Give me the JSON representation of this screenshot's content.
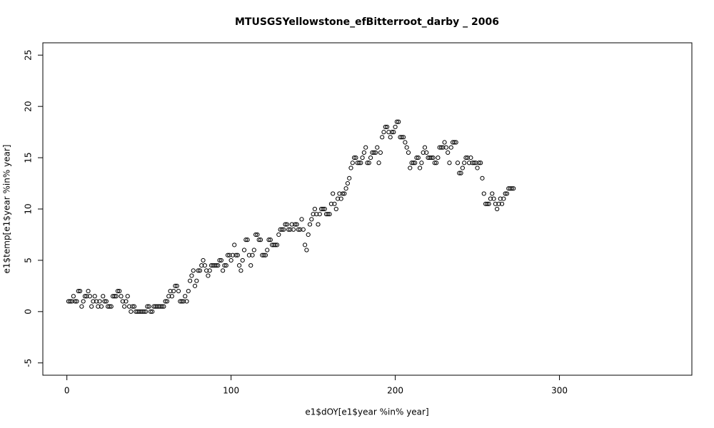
{
  "chart_data": {
    "type": "scatter",
    "title": "MTUSGSYellowstone_efBitterroot_darby _ 2006",
    "x_label": "e1$dOY[e1$year %in% year]",
    "y_label": "e1$temp[e1$year %in% year]",
    "color": "#000000",
    "xlim": [
      -14.64,
      380.64
    ],
    "ylim": [
      -6.2,
      26.2
    ],
    "xticks": [
      0,
      100,
      200,
      300
    ],
    "yticks": [
      -5,
      0,
      5,
      10,
      15,
      20,
      25
    ],
    "x": [
      1,
      2,
      3,
      4,
      5,
      6,
      7,
      8,
      9,
      10,
      11,
      12,
      13,
      14,
      15,
      16,
      17,
      18,
      19,
      20,
      21,
      22,
      23,
      24,
      25,
      26,
      27,
      28,
      29,
      30,
      31,
      32,
      33,
      34,
      35,
      36,
      37,
      38,
      39,
      40,
      41,
      42,
      43,
      44,
      45,
      46,
      47,
      48,
      49,
      50,
      51,
      52,
      53,
      54,
      55,
      56,
      57,
      58,
      59,
      60,
      61,
      62,
      63,
      64,
      65,
      66,
      67,
      68,
      69,
      70,
      71,
      72,
      73,
      74,
      75,
      76,
      77,
      78,
      79,
      80,
      81,
      82,
      83,
      84,
      85,
      86,
      87,
      88,
      89,
      90,
      91,
      92,
      93,
      94,
      95,
      96,
      97,
      98,
      99,
      100,
      101,
      102,
      103,
      104,
      105,
      106,
      107,
      108,
      109,
      110,
      111,
      112,
      113,
      114,
      115,
      116,
      117,
      118,
      119,
      120,
      121,
      122,
      123,
      124,
      125,
      126,
      127,
      128,
      129,
      130,
      131,
      132,
      133,
      134,
      135,
      136,
      137,
      138,
      139,
      140,
      141,
      142,
      143,
      144,
      145,
      146,
      147,
      148,
      149,
      150,
      151,
      152,
      153,
      154,
      155,
      156,
      157,
      158,
      159,
      160,
      161,
      162,
      163,
      164,
      165,
      166,
      167,
      168,
      169,
      170,
      171,
      172,
      173,
      174,
      175,
      176,
      177,
      178,
      179,
      180,
      181,
      182,
      183,
      184,
      185,
      186,
      187,
      188,
      189,
      190,
      191,
      192,
      193,
      194,
      195,
      196,
      197,
      198,
      199,
      200,
      201,
      202,
      203,
      204,
      205,
      206,
      207,
      208,
      209,
      210,
      211,
      212,
      213,
      214,
      215,
      216,
      217,
      218,
      219,
      220,
      221,
      222,
      223,
      224,
      225,
      226,
      227,
      228,
      229,
      230,
      231,
      232,
      233,
      234,
      235,
      236,
      237,
      238,
      239,
      240,
      241,
      242,
      243,
      244,
      245,
      246,
      247,
      248,
      249,
      250,
      251,
      252,
      253,
      254,
      255,
      256,
      257,
      258,
      259,
      260,
      261,
      262,
      263,
      264,
      265,
      266,
      267,
      268,
      269,
      270,
      271,
      272
    ],
    "values": [
      1,
      1,
      1,
      1.5,
      1,
      1,
      2,
      2,
      0.5,
      1,
      1.5,
      1.5,
      2,
      1.5,
      0.5,
      1,
      1.5,
      1,
      0.5,
      1,
      0.5,
      1.5,
      1,
      1,
      0.5,
      0.5,
      0.5,
      1.5,
      1.5,
      1.5,
      2,
      2,
      1.5,
      1,
      0.5,
      1,
      1.5,
      0.5,
      0,
      0.5,
      0.5,
      0,
      0,
      0,
      0,
      0,
      0,
      0,
      0.5,
      0.5,
      0,
      0,
      0.5,
      0.5,
      0.5,
      0.5,
      0.5,
      0.5,
      0.5,
      1,
      1,
      1.5,
      2,
      1.5,
      2,
      2.5,
      2.5,
      2,
      1,
      1,
      1,
      1.5,
      1,
      2,
      3,
      3.5,
      4,
      2.5,
      3,
      4,
      4,
      4.5,
      5,
      4.5,
      4,
      3.5,
      4,
      4.5,
      4.5,
      4.5,
      4.5,
      4.5,
      5,
      5,
      4,
      4.5,
      4.5,
      5.5,
      5.5,
      5,
      5.5,
      6.5,
      5.5,
      5.5,
      4.5,
      4,
      5,
      6,
      7,
      7,
      5.5,
      4.5,
      5.5,
      6,
      7.5,
      7.5,
      7,
      7,
      5.5,
      5.5,
      5.5,
      6,
      7,
      7,
      6.5,
      6.5,
      6.5,
      6.5,
      7.5,
      8,
      8,
      8,
      8.5,
      8.5,
      8,
      8,
      8.5,
      8,
      8.5,
      8.5,
      8,
      8,
      9,
      8,
      6.5,
      6,
      7.5,
      8.5,
      9,
      9.5,
      10,
      9.5,
      8.5,
      9.5,
      10,
      10,
      10,
      9.5,
      9.5,
      9.5,
      10.5,
      11.5,
      10.5,
      10,
      11,
      11.5,
      11,
      11.5,
      11.5,
      12,
      12.5,
      13,
      14,
      14.5,
      15,
      15,
      14.5,
      14.5,
      14.5,
      15,
      15.5,
      16,
      14.5,
      14.5,
      15,
      15.5,
      15.5,
      15.5,
      16,
      14.5,
      15.5,
      17,
      17.5,
      18,
      18,
      17.5,
      17,
      17.5,
      17.5,
      18,
      18.5,
      18.5,
      17,
      17,
      17,
      16.5,
      16,
      15.5,
      14,
      14.5,
      14.5,
      14.5,
      15,
      15,
      14,
      14.5,
      15.5,
      16,
      15.5,
      15,
      15,
      15,
      15,
      14.5,
      14.5,
      15,
      16,
      16,
      16,
      16.5,
      16,
      15.5,
      14.5,
      16,
      16.5,
      16.5,
      16.5,
      14.5,
      13.5,
      13.5,
      14,
      14.5,
      15,
      15,
      14.5,
      15,
      14.5,
      14.5,
      14.5,
      14,
      14.5,
      14.5,
      13,
      11.5,
      10.5,
      10.5,
      10.5,
      11,
      11.5,
      11,
      10.5,
      10,
      10.5,
      11,
      10.5,
      11,
      11.5,
      11.5,
      12,
      12,
      12,
      12
    ]
  }
}
